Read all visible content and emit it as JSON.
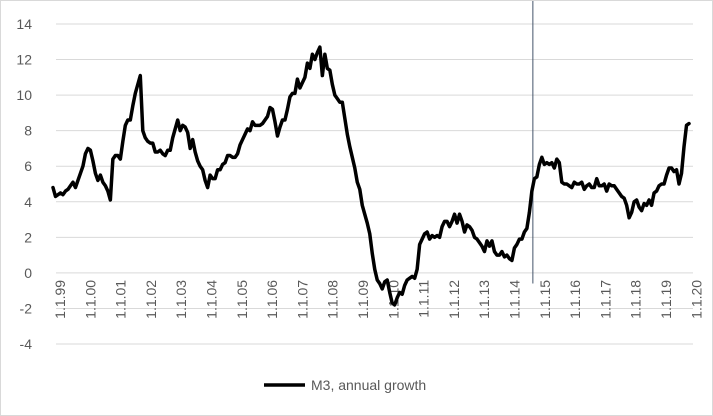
{
  "chart_data": {
    "type": "line",
    "title": "",
    "xlabel": "",
    "ylabel": "",
    "ylim": [
      -4,
      14
    ],
    "yticks": [
      -4,
      -2,
      0,
      2,
      4,
      6,
      8,
      10,
      12,
      14
    ],
    "xlim": [
      "1999-01",
      "2020-04"
    ],
    "grid": "horizontal",
    "legend_position": "bottom",
    "line_color": "#000000",
    "marker_line_color": "#44546a",
    "x_tick_labels": [
      "1.1.99",
      "1.1.00",
      "1.1.01",
      "1.1.02",
      "1.1.03",
      "1.1.04",
      "1.1.05",
      "1.1.06",
      "1.1.07",
      "1.1.08",
      "1.1.09",
      "1.1.10",
      "1.1.11",
      "1.1.12",
      "1.1.13",
      "1.1.14",
      "1.1.15",
      "1.1.16",
      "1.1.17",
      "1.1.18",
      "1.1.19",
      "1.1.20"
    ],
    "vertical_line_at": "2015-01",
    "series": [
      {
        "name": "M3, annual growth",
        "points": [
          [
            "1999-01",
            4.8
          ],
          [
            "1999-02",
            4.3
          ],
          [
            "1999-03",
            4.4
          ],
          [
            "1999-04",
            4.5
          ],
          [
            "1999-05",
            4.4
          ],
          [
            "1999-06",
            4.6
          ],
          [
            "1999-07",
            4.7
          ],
          [
            "1999-08",
            4.9
          ],
          [
            "1999-09",
            5.1
          ],
          [
            "1999-10",
            4.8
          ],
          [
            "1999-11",
            5.2
          ],
          [
            "1999-12",
            5.6
          ],
          [
            "2000-01",
            6.0
          ],
          [
            "2000-02",
            6.7
          ],
          [
            "2000-03",
            7.0
          ],
          [
            "2000-04",
            6.9
          ],
          [
            "2000-05",
            6.3
          ],
          [
            "2000-06",
            5.6
          ],
          [
            "2000-07",
            5.2
          ],
          [
            "2000-08",
            5.5
          ],
          [
            "2000-09",
            5.1
          ],
          [
            "2000-10",
            4.9
          ],
          [
            "2000-11",
            4.6
          ],
          [
            "2000-12",
            4.1
          ],
          [
            "2001-01",
            6.4
          ],
          [
            "2001-02",
            6.6
          ],
          [
            "2001-03",
            6.6
          ],
          [
            "2001-04",
            6.4
          ],
          [
            "2001-05",
            7.4
          ],
          [
            "2001-06",
            8.3
          ],
          [
            "2001-07",
            8.6
          ],
          [
            "2001-08",
            8.6
          ],
          [
            "2001-09",
            9.4
          ],
          [
            "2001-10",
            10.1
          ],
          [
            "2001-11",
            10.6
          ],
          [
            "2001-12",
            11.1
          ],
          [
            "2002-01",
            8.0
          ],
          [
            "2002-02",
            7.6
          ],
          [
            "2002-03",
            7.4
          ],
          [
            "2002-04",
            7.3
          ],
          [
            "2002-05",
            7.3
          ],
          [
            "2002-06",
            6.8
          ],
          [
            "2002-07",
            6.8
          ],
          [
            "2002-08",
            6.9
          ],
          [
            "2002-09",
            6.7
          ],
          [
            "2002-10",
            6.6
          ],
          [
            "2002-11",
            6.9
          ],
          [
            "2002-12",
            6.9
          ],
          [
            "2003-01",
            7.6
          ],
          [
            "2003-02",
            8.1
          ],
          [
            "2003-03",
            8.6
          ],
          [
            "2003-04",
            8.0
          ],
          [
            "2003-05",
            8.3
          ],
          [
            "2003-06",
            8.2
          ],
          [
            "2003-07",
            7.9
          ],
          [
            "2003-08",
            7.0
          ],
          [
            "2003-09",
            7.5
          ],
          [
            "2003-10",
            6.8
          ],
          [
            "2003-11",
            6.3
          ],
          [
            "2003-12",
            6.0
          ],
          [
            "2004-01",
            5.8
          ],
          [
            "2004-02",
            5.2
          ],
          [
            "2004-03",
            4.8
          ],
          [
            "2004-04",
            5.5
          ],
          [
            "2004-05",
            5.3
          ],
          [
            "2004-06",
            5.3
          ],
          [
            "2004-07",
            5.8
          ],
          [
            "2004-08",
            5.8
          ],
          [
            "2004-09",
            6.1
          ],
          [
            "2004-10",
            6.2
          ],
          [
            "2004-11",
            6.6
          ],
          [
            "2004-12",
            6.6
          ],
          [
            "2005-01",
            6.5
          ],
          [
            "2005-02",
            6.5
          ],
          [
            "2005-03",
            6.7
          ],
          [
            "2005-04",
            7.2
          ],
          [
            "2005-05",
            7.5
          ],
          [
            "2005-06",
            7.8
          ],
          [
            "2005-07",
            8.1
          ],
          [
            "2005-08",
            8.0
          ],
          [
            "2005-09",
            8.5
          ],
          [
            "2005-10",
            8.3
          ],
          [
            "2005-11",
            8.3
          ],
          [
            "2005-12",
            8.3
          ],
          [
            "2006-01",
            8.4
          ],
          [
            "2006-02",
            8.6
          ],
          [
            "2006-03",
            8.8
          ],
          [
            "2006-04",
            9.3
          ],
          [
            "2006-05",
            9.2
          ],
          [
            "2006-06",
            8.5
          ],
          [
            "2006-07",
            7.7
          ],
          [
            "2006-08",
            8.2
          ],
          [
            "2006-09",
            8.6
          ],
          [
            "2006-10",
            8.6
          ],
          [
            "2006-11",
            9.2
          ],
          [
            "2006-12",
            9.9
          ],
          [
            "2007-01",
            10.1
          ],
          [
            "2007-02",
            10.1
          ],
          [
            "2007-03",
            10.9
          ],
          [
            "2007-04",
            10.4
          ],
          [
            "2007-05",
            10.7
          ],
          [
            "2007-06",
            11.0
          ],
          [
            "2007-07",
            11.8
          ],
          [
            "2007-08",
            11.5
          ],
          [
            "2007-09",
            12.3
          ],
          [
            "2007-10",
            12.0
          ],
          [
            "2007-11",
            12.4
          ],
          [
            "2007-12",
            12.7
          ],
          [
            "2008-01",
            11.1
          ],
          [
            "2008-02",
            12.3
          ],
          [
            "2008-03",
            11.5
          ],
          [
            "2008-04",
            11.4
          ],
          [
            "2008-05",
            10.6
          ],
          [
            "2008-06",
            10.0
          ],
          [
            "2008-07",
            9.8
          ],
          [
            "2008-08",
            9.6
          ],
          [
            "2008-09",
            9.6
          ],
          [
            "2008-10",
            8.7
          ],
          [
            "2008-11",
            7.8
          ],
          [
            "2008-12",
            7.1
          ],
          [
            "2009-01",
            6.5
          ],
          [
            "2009-02",
            5.9
          ],
          [
            "2009-03",
            5.1
          ],
          [
            "2009-04",
            4.7
          ],
          [
            "2009-05",
            3.8
          ],
          [
            "2009-06",
            3.3
          ],
          [
            "2009-07",
            2.8
          ],
          [
            "2009-08",
            2.2
          ],
          [
            "2009-09",
            1.1
          ],
          [
            "2009-10",
            0.2
          ],
          [
            "2009-11",
            -0.4
          ],
          [
            "2009-12",
            -0.6
          ],
          [
            "2010-01",
            -0.9
          ],
          [
            "2010-02",
            -0.5
          ],
          [
            "2010-03",
            -0.4
          ],
          [
            "2010-04",
            -1.1
          ],
          [
            "2010-05",
            -1.7
          ],
          [
            "2010-06",
            -1.8
          ],
          [
            "2010-07",
            -1.4
          ],
          [
            "2010-08",
            -1.1
          ],
          [
            "2010-09",
            -1.2
          ],
          [
            "2010-10",
            -0.7
          ],
          [
            "2010-11",
            -0.4
          ],
          [
            "2010-12",
            -0.3
          ],
          [
            "2011-01",
            -0.2
          ],
          [
            "2011-02",
            -0.3
          ],
          [
            "2011-03",
            0.2
          ],
          [
            "2011-04",
            1.6
          ],
          [
            "2011-05",
            1.9
          ],
          [
            "2011-06",
            2.2
          ],
          [
            "2011-07",
            2.3
          ],
          [
            "2011-08",
            1.9
          ],
          [
            "2011-09",
            2.1
          ],
          [
            "2011-10",
            2.0
          ],
          [
            "2011-11",
            2.1
          ],
          [
            "2011-12",
            2.0
          ],
          [
            "2012-01",
            2.6
          ],
          [
            "2012-02",
            2.9
          ],
          [
            "2012-03",
            2.9
          ],
          [
            "2012-04",
            2.6
          ],
          [
            "2012-05",
            2.9
          ],
          [
            "2012-06",
            3.3
          ],
          [
            "2012-07",
            2.8
          ],
          [
            "2012-08",
            3.3
          ],
          [
            "2012-09",
            2.9
          ],
          [
            "2012-10",
            2.3
          ],
          [
            "2012-11",
            2.7
          ],
          [
            "2012-12",
            2.6
          ],
          [
            "2013-01",
            2.4
          ],
          [
            "2013-02",
            2.0
          ],
          [
            "2013-03",
            1.9
          ],
          [
            "2013-04",
            1.7
          ],
          [
            "2013-05",
            1.5
          ],
          [
            "2013-06",
            1.2
          ],
          [
            "2013-07",
            1.8
          ],
          [
            "2013-08",
            1.5
          ],
          [
            "2013-09",
            1.8
          ],
          [
            "2013-10",
            1.2
          ],
          [
            "2013-11",
            1.0
          ],
          [
            "2013-12",
            1.0
          ],
          [
            "2014-01",
            1.2
          ],
          [
            "2014-02",
            0.9
          ],
          [
            "2014-03",
            1.0
          ],
          [
            "2014-04",
            0.8
          ],
          [
            "2014-05",
            0.7
          ],
          [
            "2014-06",
            1.4
          ],
          [
            "2014-07",
            1.6
          ],
          [
            "2014-08",
            1.9
          ],
          [
            "2014-09",
            1.9
          ],
          [
            "2014-10",
            2.3
          ],
          [
            "2014-11",
            2.5
          ],
          [
            "2014-12",
            3.4
          ],
          [
            "2015-01",
            4.6
          ],
          [
            "2015-02",
            5.3
          ],
          [
            "2015-03",
            5.4
          ],
          [
            "2015-04",
            6.1
          ],
          [
            "2015-05",
            6.5
          ],
          [
            "2015-06",
            6.1
          ],
          [
            "2015-07",
            6.2
          ],
          [
            "2015-08",
            6.1
          ],
          [
            "2015-09",
            6.2
          ],
          [
            "2015-10",
            5.9
          ],
          [
            "2015-11",
            6.4
          ],
          [
            "2015-12",
            6.2
          ],
          [
            "2016-01",
            5.1
          ],
          [
            "2016-02",
            5.0
          ],
          [
            "2016-03",
            5.0
          ],
          [
            "2016-04",
            4.9
          ],
          [
            "2016-05",
            4.8
          ],
          [
            "2016-06",
            5.1
          ],
          [
            "2016-07",
            5.0
          ],
          [
            "2016-08",
            5.0
          ],
          [
            "2016-09",
            5.1
          ],
          [
            "2016-10",
            4.7
          ],
          [
            "2016-11",
            4.9
          ],
          [
            "2016-12",
            5.0
          ],
          [
            "2017-01",
            4.8
          ],
          [
            "2017-02",
            4.8
          ],
          [
            "2017-03",
            5.3
          ],
          [
            "2017-04",
            4.9
          ],
          [
            "2017-05",
            4.9
          ],
          [
            "2017-06",
            5.0
          ],
          [
            "2017-07",
            4.6
          ],
          [
            "2017-08",
            5.0
          ],
          [
            "2017-09",
            4.9
          ],
          [
            "2017-10",
            4.9
          ],
          [
            "2017-11",
            4.7
          ],
          [
            "2017-12",
            4.5
          ],
          [
            "2018-01",
            4.3
          ],
          [
            "2018-02",
            4.2
          ],
          [
            "2018-03",
            3.8
          ],
          [
            "2018-04",
            3.1
          ],
          [
            "2018-05",
            3.4
          ],
          [
            "2018-06",
            4.0
          ],
          [
            "2018-07",
            4.1
          ],
          [
            "2018-08",
            3.7
          ],
          [
            "2018-09",
            3.5
          ],
          [
            "2018-10",
            3.9
          ],
          [
            "2018-11",
            3.8
          ],
          [
            "2018-12",
            4.1
          ],
          [
            "2019-01",
            3.8
          ],
          [
            "2019-02",
            4.5
          ],
          [
            "2019-03",
            4.6
          ],
          [
            "2019-04",
            4.9
          ],
          [
            "2019-05",
            5.0
          ],
          [
            "2019-06",
            5.0
          ],
          [
            "2019-07",
            5.5
          ],
          [
            "2019-08",
            5.9
          ],
          [
            "2019-09",
            5.9
          ],
          [
            "2019-10",
            5.7
          ],
          [
            "2019-11",
            5.8
          ],
          [
            "2019-12",
            5.0
          ],
          [
            "2020-01",
            5.6
          ],
          [
            "2020-02",
            7.1
          ],
          [
            "2020-03",
            8.3
          ],
          [
            "2020-04",
            8.4
          ]
        ]
      }
    ]
  }
}
